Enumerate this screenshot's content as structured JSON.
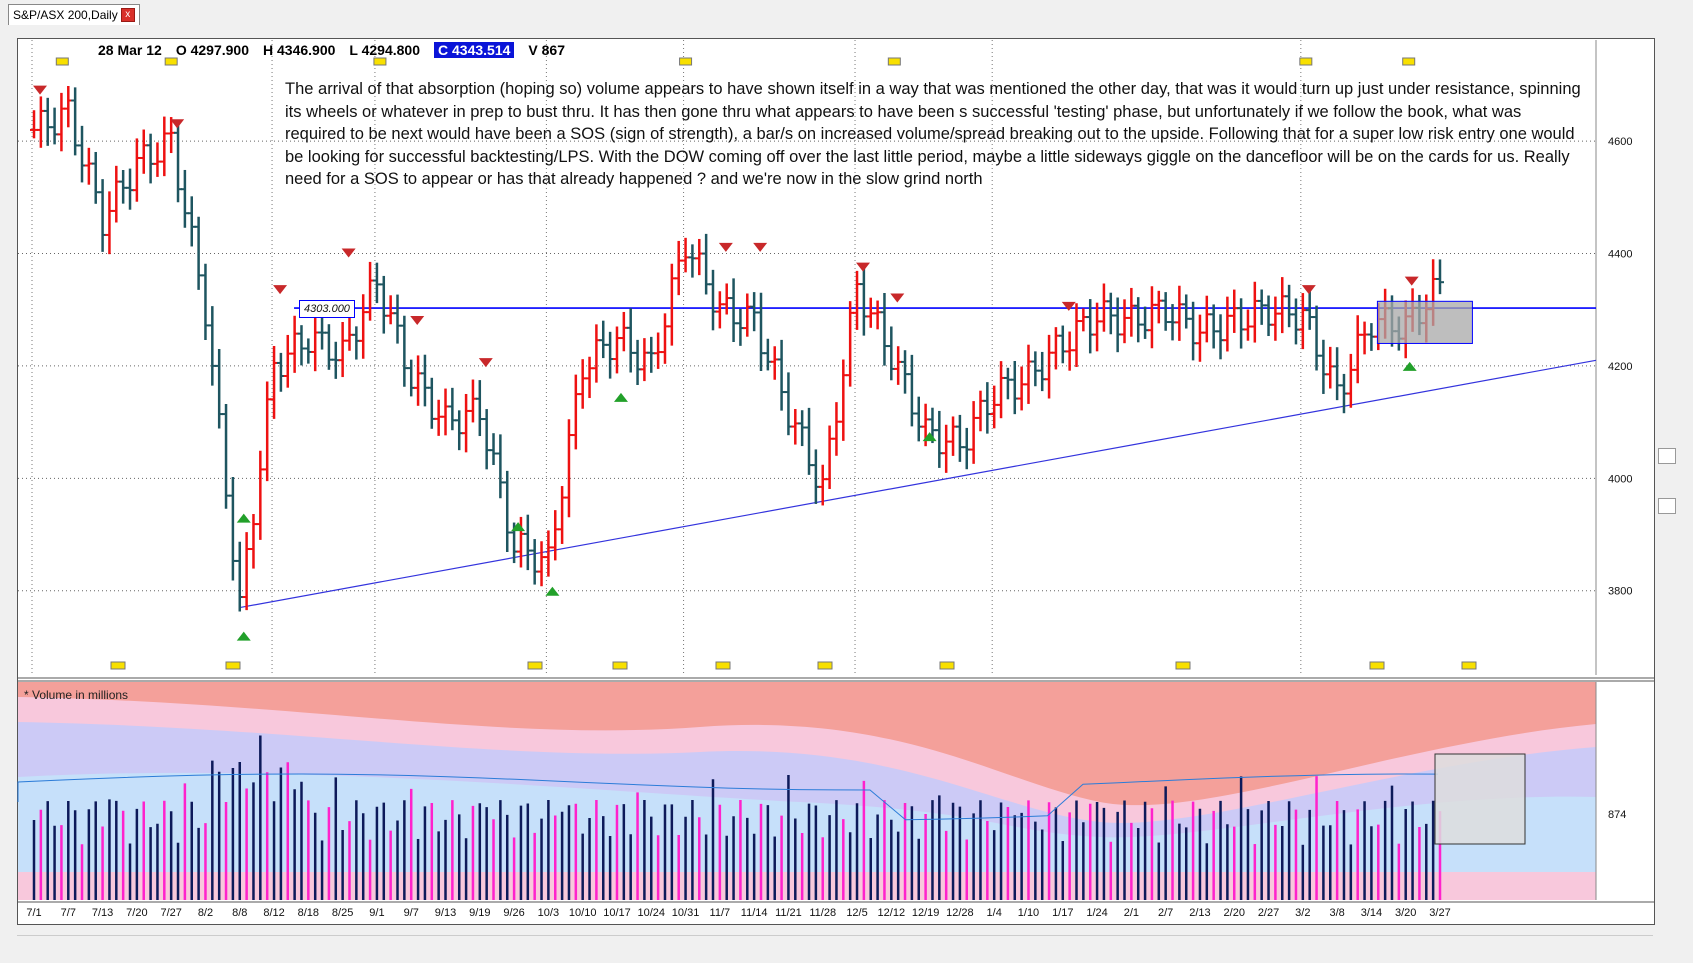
{
  "window": {
    "tab_title": "S&P/ASX 200,Daily",
    "close_glyph": "x"
  },
  "ohlc": {
    "date": "28 Mar 12",
    "open": "O 4297.900",
    "high": "H 4346.900",
    "low": "L 4294.800",
    "close": "C 4343.514",
    "volume": "V 867"
  },
  "annotation": "The arrival of that absorption (hoping so) volume appears to have shown itself in a way that was mentioned the other day, that was it would turn up just under resistance, spinning its wheels or whatever in prep to bust thru. It has then gone thru what appears to have been s successful 'testing' phase, but unfortunately if we follow the book, what was required to be next would have been a SOS (sign of strength), a bar/s on increased volume/spread breaking out to the upside. Following that for a super low risk entry one would be looking for successful backtesting/LPS.   With the DOW coming off over the last little period, maybe a little sideways giggle on the dancefloor will be on the cards for us. Really need for a SOS to appear or has that already happened ?  and we're  now in the slow grind north",
  "resistance_label": "4303.000",
  "volume_label": "* Volume in millions",
  "colors": {
    "up": "#ee1111",
    "down": "#1e5560",
    "resistance": "#0000ff",
    "trendline": "#3333dd",
    "vol_dark": "#0d1a5a",
    "vol_pink": "#ff22cc",
    "vol_band_top": "#f4a09a",
    "vol_band_pink": "#f8c8dc",
    "vol_band_lav": "#cccaf6",
    "vol_band_blue": "#c6e0fa",
    "close_bg": "#0a14d8"
  },
  "chart_data": {
    "type": "ohlc",
    "title": "S&P/ASX 200,Daily",
    "y_ticks": [
      4600,
      4400,
      4200,
      4000,
      3800
    ],
    "ylim": [
      3650,
      4780
    ],
    "x_tick_labels": [
      "7/1",
      "7/7",
      "7/13",
      "7/20",
      "7/27",
      "8/2",
      "8/8",
      "8/12",
      "8/18",
      "8/25",
      "9/1",
      "9/7",
      "9/13",
      "9/19",
      "9/26",
      "10/3",
      "10/10",
      "10/17",
      "10/24",
      "10/31",
      "11/7",
      "11/14",
      "11/21",
      "11/28",
      "12/5",
      "12/12",
      "12/19",
      "12/28",
      "1/4",
      "1/10",
      "1/17",
      "1/24",
      "2/1",
      "2/7",
      "2/13",
      "2/20",
      "2/27",
      "3/2",
      "3/8",
      "3/14",
      "3/20",
      "3/27"
    ],
    "resistance_level": 4303,
    "trendline": {
      "from": [
        3770,
        "8/8"
      ],
      "to": [
        4210,
        "3/29"
      ]
    },
    "key_points": [
      {
        "date": "7/1",
        "value": 4620
      },
      {
        "date": "7/7",
        "value": 4650
      },
      {
        "date": "7/13",
        "value": 4460
      },
      {
        "date": "7/20",
        "value": 4560
      },
      {
        "date": "7/27",
        "value": 4600
      },
      {
        "date": "8/2",
        "value": 4300
      },
      {
        "date": "8/8",
        "value": 3770
      },
      {
        "date": "8/12",
        "value": 4200
      },
      {
        "date": "8/18",
        "value": 4250
      },
      {
        "date": "8/25",
        "value": 4220
      },
      {
        "date": "9/1",
        "value": 4350
      },
      {
        "date": "9/7",
        "value": 4180
      },
      {
        "date": "9/13",
        "value": 4100
      },
      {
        "date": "9/19",
        "value": 4120
      },
      {
        "date": "9/26",
        "value": 3880
      },
      {
        "date": "10/3",
        "value": 3850
      },
      {
        "date": "10/10",
        "value": 4200
      },
      {
        "date": "10/17",
        "value": 4250
      },
      {
        "date": "10/24",
        "value": 4200
      },
      {
        "date": "10/31",
        "value": 4420
      },
      {
        "date": "11/7",
        "value": 4300
      },
      {
        "date": "11/14",
        "value": 4280
      },
      {
        "date": "11/21",
        "value": 4120
      },
      {
        "date": "11/28",
        "value": 3980
      },
      {
        "date": "12/5",
        "value": 4340
      },
      {
        "date": "12/12",
        "value": 4220
      },
      {
        "date": "12/19",
        "value": 4080
      },
      {
        "date": "12/28",
        "value": 4060
      },
      {
        "date": "1/4",
        "value": 4150
      },
      {
        "date": "1/10",
        "value": 4180
      },
      {
        "date": "1/17",
        "value": 4240
      },
      {
        "date": "1/24",
        "value": 4290
      },
      {
        "date": "2/1",
        "value": 4280
      },
      {
        "date": "2/7",
        "value": 4300
      },
      {
        "date": "2/13",
        "value": 4260
      },
      {
        "date": "2/20",
        "value": 4280
      },
      {
        "date": "2/27",
        "value": 4300
      },
      {
        "date": "3/2",
        "value": 4290
      },
      {
        "date": "3/8",
        "value": 4150
      },
      {
        "date": "3/14",
        "value": 4280
      },
      {
        "date": "3/20",
        "value": 4270
      },
      {
        "date": "3/27",
        "value": 4343
      }
    ],
    "volume": {
      "unit": "millions",
      "tick": 874
    }
  }
}
